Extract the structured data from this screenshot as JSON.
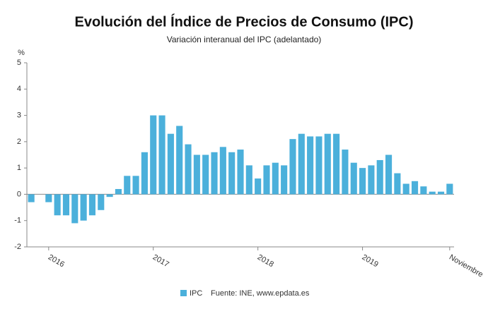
{
  "chart_data": {
    "type": "bar",
    "title": "Evolución del Índice de Precios de Consumo (IPC)",
    "subtitle": "Variación interanual del IPC (adelantado)",
    "y_label": "%",
    "source": "Fuente: INE, www.epdata.es",
    "categories": [
      null,
      null,
      "2016",
      null,
      null,
      null,
      null,
      null,
      null,
      null,
      null,
      null,
      null,
      null,
      "2017",
      null,
      null,
      null,
      null,
      null,
      null,
      null,
      null,
      null,
      null,
      null,
      "2018",
      null,
      null,
      null,
      null,
      null,
      null,
      null,
      null,
      null,
      null,
      null,
      "2019",
      null,
      null,
      null,
      null,
      null,
      null,
      null,
      null,
      null,
      "Noviembre"
    ],
    "series": [
      {
        "name": "IPC",
        "color": "#4bb0db",
        "values": [
          -0.3,
          0.0,
          -0.3,
          -0.8,
          -0.8,
          -1.1,
          -1.0,
          -0.8,
          -0.6,
          -0.1,
          0.2,
          0.7,
          0.7,
          1.6,
          3.0,
          3.0,
          2.3,
          2.6,
          1.9,
          1.5,
          1.5,
          1.6,
          1.8,
          1.6,
          1.7,
          1.1,
          0.6,
          1.1,
          1.2,
          1.1,
          2.1,
          2.3,
          2.2,
          2.2,
          2.3,
          2.3,
          1.7,
          1.2,
          1.0,
          1.1,
          1.3,
          1.5,
          0.8,
          0.4,
          0.5,
          0.3,
          0.1,
          0.1,
          0.4
        ]
      }
    ],
    "ylim": [
      -2,
      5
    ],
    "yticks": [
      -2,
      -1,
      0,
      1,
      2,
      3,
      4,
      5
    ],
    "grid": false
  }
}
